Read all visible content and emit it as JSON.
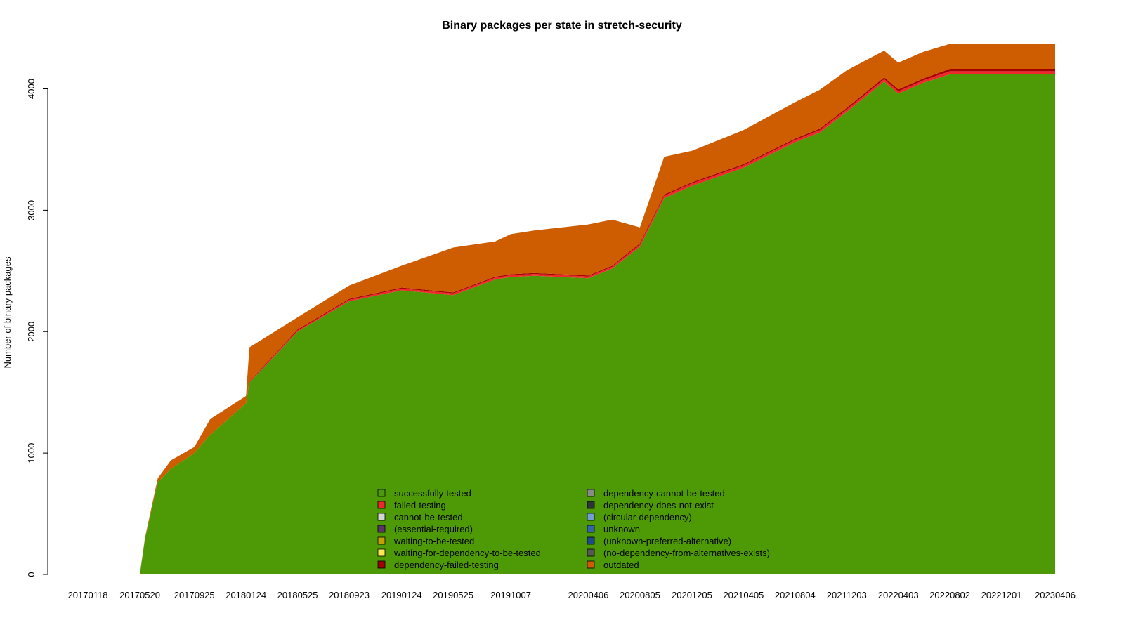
{
  "chart_data": {
    "type": "area",
    "stacked": true,
    "title": "Binary packages per state in stretch-security",
    "xlabel": "",
    "ylabel": "Number of binary packages",
    "ylim": [
      0,
      4350
    ],
    "yticks": [
      0,
      1000,
      2000,
      3000,
      4000
    ],
    "xticks": [
      "20170118",
      "20170520",
      "20170925",
      "20180124",
      "20180525",
      "20180923",
      "20190124",
      "20190525",
      "20191007",
      "20200406",
      "20200805",
      "20201205",
      "20210405",
      "20210804",
      "20211203",
      "20220403",
      "20220802",
      "20221201",
      "20230406"
    ],
    "grid": false,
    "legend_position": "bottom-center",
    "x": [
      "20170118",
      "20170520",
      "20170601",
      "20170701",
      "20170801",
      "20170925",
      "20171101",
      "20180124",
      "20180201",
      "20180525",
      "20180923",
      "20190124",
      "20190525",
      "20190901",
      "20191007",
      "20191201",
      "20200406",
      "20200601",
      "20200805",
      "20201001",
      "20201205",
      "20210405",
      "20210804",
      "20211001",
      "20211203",
      "20220301",
      "20220403",
      "20220601",
      "20220802",
      "20221201",
      "20230406"
    ],
    "series": [
      {
        "name": "successfully-tested",
        "color": "#4e9a06",
        "values": [
          0,
          0,
          290,
          760,
          870,
          1000,
          1150,
          1410,
          1580,
          2000,
          2250,
          2340,
          2300,
          2430,
          2450,
          2460,
          2440,
          2520,
          2700,
          3100,
          3200,
          3350,
          3560,
          3640,
          3810,
          4060,
          3960,
          4050,
          4120,
          4120,
          4120
        ]
      },
      {
        "name": "failed-testing",
        "color": "#ef2929",
        "values": [
          0,
          0,
          0,
          0,
          0,
          0,
          0,
          0,
          5,
          10,
          12,
          15,
          15,
          15,
          15,
          15,
          15,
          15,
          18,
          20,
          20,
          20,
          20,
          20,
          20,
          20,
          20,
          20,
          25,
          25,
          25
        ]
      },
      {
        "name": "cannot-be-tested",
        "color": "#d3d7cf",
        "values": [
          0,
          0,
          0,
          0,
          0,
          0,
          0,
          0,
          0,
          0,
          0,
          0,
          0,
          0,
          0,
          0,
          0,
          0,
          0,
          0,
          0,
          0,
          0,
          0,
          0,
          0,
          0,
          0,
          0,
          0,
          0
        ]
      },
      {
        "name": "(essential-required)",
        "color": "#5c3566",
        "values": [
          0,
          0,
          0,
          0,
          0,
          0,
          0,
          0,
          0,
          0,
          0,
          0,
          0,
          0,
          0,
          0,
          0,
          0,
          0,
          0,
          0,
          0,
          0,
          0,
          0,
          0,
          0,
          0,
          0,
          0,
          0
        ]
      },
      {
        "name": "waiting-to-be-tested",
        "color": "#c4a000",
        "values": [
          0,
          0,
          0,
          0,
          0,
          0,
          0,
          0,
          0,
          0,
          0,
          0,
          0,
          0,
          0,
          0,
          0,
          0,
          0,
          0,
          0,
          0,
          0,
          0,
          0,
          0,
          0,
          0,
          0,
          0,
          0
        ]
      },
      {
        "name": "waiting-for-dependency-to-be-tested",
        "color": "#fce94f",
        "values": [
          0,
          0,
          0,
          0,
          0,
          0,
          0,
          0,
          0,
          0,
          0,
          0,
          0,
          0,
          0,
          0,
          0,
          0,
          0,
          0,
          0,
          0,
          0,
          0,
          0,
          0,
          0,
          0,
          0,
          0,
          0
        ]
      },
      {
        "name": "dependency-failed-testing",
        "color": "#a40000",
        "values": [
          0,
          0,
          0,
          0,
          0,
          0,
          0,
          0,
          5,
          8,
          8,
          8,
          8,
          8,
          8,
          8,
          8,
          8,
          10,
          10,
          10,
          10,
          10,
          12,
          12,
          15,
          15,
          15,
          20,
          20,
          20
        ]
      },
      {
        "name": "dependency-cannot-be-tested",
        "color": "#888a85",
        "values": [
          0,
          0,
          0,
          0,
          0,
          0,
          0,
          0,
          0,
          0,
          0,
          0,
          0,
          0,
          0,
          0,
          0,
          0,
          0,
          0,
          0,
          0,
          0,
          0,
          0,
          0,
          0,
          0,
          0,
          0,
          0
        ]
      },
      {
        "name": "dependency-does-not-exist",
        "color": "#2e3436",
        "values": [
          0,
          0,
          0,
          0,
          0,
          0,
          0,
          0,
          0,
          0,
          0,
          0,
          0,
          0,
          0,
          0,
          0,
          0,
          0,
          0,
          0,
          0,
          0,
          0,
          0,
          0,
          0,
          0,
          0,
          0,
          0
        ]
      },
      {
        "name": "(circular-dependency)",
        "color": "#729fcf",
        "values": [
          0,
          0,
          0,
          0,
          0,
          0,
          0,
          0,
          0,
          0,
          0,
          0,
          0,
          0,
          0,
          0,
          0,
          0,
          0,
          0,
          0,
          0,
          0,
          0,
          0,
          0,
          0,
          0,
          0,
          0,
          0
        ]
      },
      {
        "name": "unknown",
        "color": "#3465a4",
        "values": [
          0,
          0,
          0,
          0,
          0,
          0,
          0,
          0,
          0,
          0,
          0,
          0,
          0,
          0,
          0,
          0,
          0,
          0,
          0,
          0,
          0,
          0,
          0,
          0,
          0,
          0,
          0,
          0,
          0,
          0,
          0
        ]
      },
      {
        "name": "(unknown-preferred-alternative)",
        "color": "#204a87",
        "values": [
          0,
          0,
          0,
          0,
          0,
          0,
          0,
          0,
          0,
          0,
          0,
          0,
          0,
          0,
          0,
          0,
          0,
          0,
          0,
          0,
          0,
          0,
          0,
          0,
          0,
          0,
          0,
          0,
          0,
          0,
          0
        ]
      },
      {
        "name": "(no-dependency-from-alternatives-exists)",
        "color": "#555753",
        "values": [
          0,
          0,
          0,
          0,
          0,
          0,
          0,
          0,
          0,
          0,
          0,
          0,
          0,
          0,
          0,
          0,
          0,
          0,
          0,
          0,
          0,
          0,
          0,
          0,
          0,
          0,
          0,
          0,
          0,
          0,
          0
        ]
      },
      {
        "name": "outdated",
        "color": "#ce5c00",
        "values": [
          0,
          0,
          10,
          30,
          70,
          50,
          130,
          60,
          280,
          100,
          110,
          180,
          370,
          290,
          330,
          350,
          420,
          380,
          130,
          310,
          260,
          280,
          300,
          320,
          310,
          220,
          220,
          220,
          205,
          205,
          205
        ]
      }
    ]
  }
}
